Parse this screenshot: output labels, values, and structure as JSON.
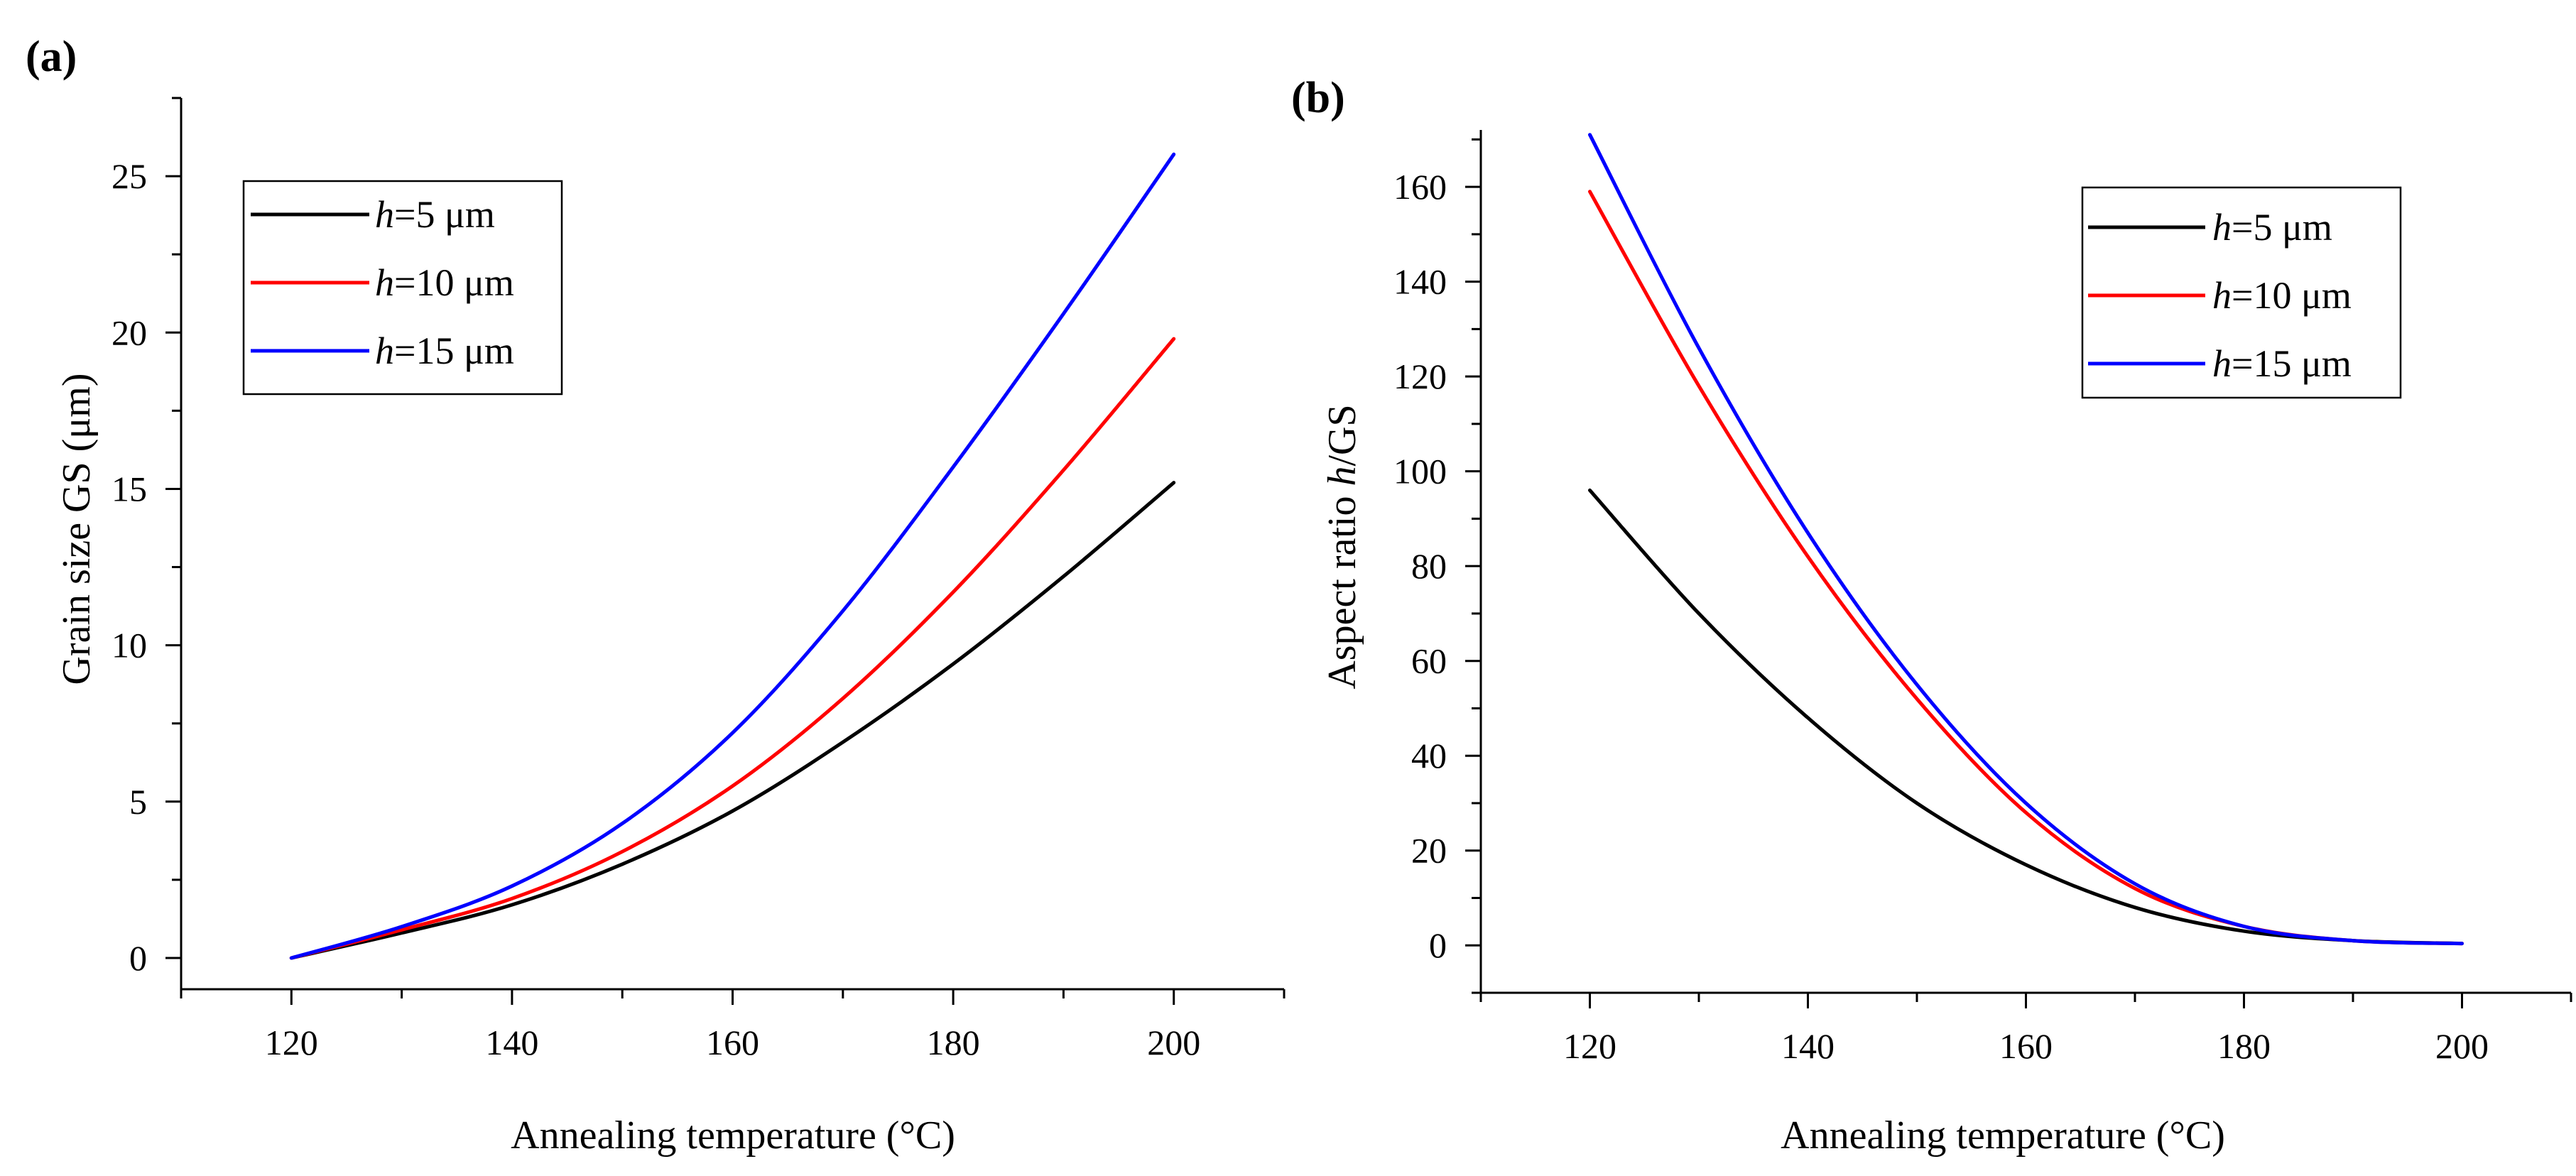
{
  "chart_data": [
    {
      "panel_label": "(a)",
      "type": "line",
      "title": "",
      "xlabel": "Annealing temperature (°C)",
      "ylabel": "Grain size GS (μm)",
      "xlim": [
        110,
        210
      ],
      "ylim": [
        -1,
        27.5
      ],
      "xticks": [
        120,
        140,
        160,
        180,
        200
      ],
      "yticks": [
        0,
        5,
        10,
        15,
        20,
        25
      ],
      "legend_position": "top-left",
      "x": [
        120,
        130,
        140,
        150,
        160,
        170,
        180,
        190,
        200
      ],
      "series": [
        {
          "name_var": "h",
          "name_rest": "=5 μm",
          "color": "#000000",
          "values": [
            0.0,
            0.8,
            1.7,
            3.0,
            4.7,
            6.9,
            9.4,
            12.2,
            15.2
          ]
        },
        {
          "name_var": "h",
          "name_rest": "=10 μm",
          "color": "#ff0000",
          "values": [
            0.0,
            0.9,
            1.9,
            3.4,
            5.5,
            8.3,
            11.7,
            15.6,
            19.8
          ]
        },
        {
          "name_var": "h",
          "name_rest": "=15 μm",
          "color": "#0000ff",
          "values": [
            0.0,
            1.0,
            2.3,
            4.3,
            7.2,
            11.1,
            15.7,
            20.6,
            25.7
          ]
        }
      ]
    },
    {
      "panel_label": "(b)",
      "type": "line",
      "title": "",
      "xlabel": "Annealing temperature (°C)",
      "ylabel_prefix": "Aspect ratio ",
      "ylabel_var": "h",
      "ylabel_suffix": "/GS",
      "xlim": [
        110,
        210
      ],
      "ylim": [
        -10,
        172
      ],
      "xticks": [
        120,
        140,
        160,
        180,
        200
      ],
      "yticks": [
        0,
        20,
        40,
        60,
        80,
        100,
        120,
        140,
        160
      ],
      "legend_position": "top-right",
      "x": [
        120,
        130,
        140,
        150,
        160,
        170,
        180,
        190,
        200
      ],
      "series": [
        {
          "name_var": "h",
          "name_rest": "=5 μm",
          "color": "#000000",
          "values": [
            96,
            70,
            48,
            30,
            17,
            8,
            3,
            1,
            0.4
          ]
        },
        {
          "name_var": "h",
          "name_rest": "=10 μm",
          "color": "#ff0000",
          "values": [
            159,
            118,
            82,
            52,
            28,
            12,
            4,
            1,
            0.4
          ]
        },
        {
          "name_var": "h",
          "name_rest": "=15 μm",
          "color": "#0000ff",
          "values": [
            171,
            126,
            87,
            55,
            30,
            13,
            4,
            1,
            0.4
          ]
        }
      ]
    }
  ]
}
